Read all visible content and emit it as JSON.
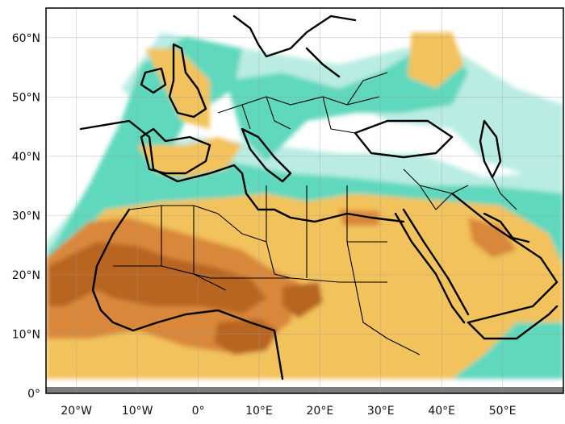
{
  "map": {
    "type": "field-map",
    "projection": "plate carree",
    "lon_range": [
      -25,
      60
    ],
    "lat_range": [
      0,
      65
    ],
    "grid": true,
    "colors": {
      "background": "#ffffff",
      "light_cyan": "#b9ece3",
      "teal": "#5fd8bd",
      "gold": "#f2c25c",
      "orange": "#d9883a",
      "brown": "#b86524",
      "missing_band": "#7d7d7d"
    },
    "x_ticks": [
      {
        "value": -20,
        "label": "20°W"
      },
      {
        "value": -10,
        "label": "10°W"
      },
      {
        "value": 0,
        "label": "0°"
      },
      {
        "value": 10,
        "label": "10°E"
      },
      {
        "value": 20,
        "label": "20°E"
      },
      {
        "value": 30,
        "label": "30°E"
      },
      {
        "value": 40,
        "label": "40°E"
      },
      {
        "value": 50,
        "label": "50°E"
      }
    ],
    "y_ticks": [
      {
        "value": 0,
        "label": "0°"
      },
      {
        "value": 10,
        "label": "10°N"
      },
      {
        "value": 20,
        "label": "20°N"
      },
      {
        "value": 30,
        "label": "30°N"
      },
      {
        "value": 40,
        "label": "40°N"
      },
      {
        "value": 50,
        "label": "50°N"
      },
      {
        "value": 60,
        "label": "60°N"
      }
    ]
  }
}
